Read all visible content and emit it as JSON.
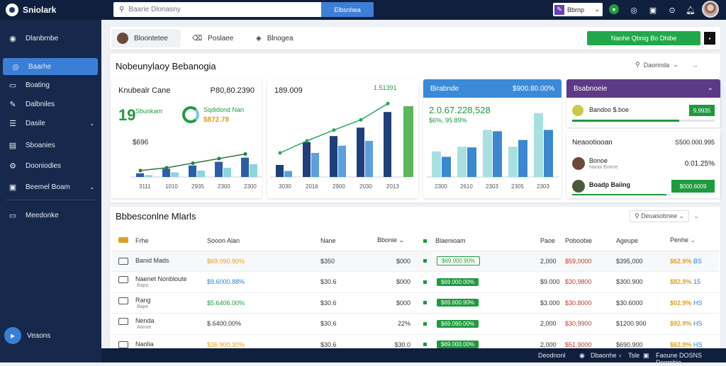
{
  "topbar": {
    "brand": "Sniolark",
    "search_placeholder": "Baarie Dlonasny",
    "search_button": "Elbsnhea",
    "selector_label": "Bbrnp"
  },
  "sidebar": {
    "items": [
      {
        "label": "Dlanbrnbe",
        "icon": "globe-icon"
      },
      {
        "label": "Baarhe",
        "icon": "chat-icon",
        "active": true
      },
      {
        "label": "Boating",
        "icon": "inbox-icon"
      },
      {
        "label": "Dalbniles",
        "icon": "edit-icon"
      },
      {
        "label": "Dasile",
        "icon": "list-icon",
        "has_chevron": true
      },
      {
        "label": "Sboanies",
        "icon": "briefcase-icon"
      },
      {
        "label": "Dooniodies",
        "icon": "settings-icon"
      },
      {
        "label": "Beemel Boam",
        "icon": "grid-icon",
        "has_chevron": true
      },
      {
        "label": "Meedonke",
        "icon": "monitor-icon"
      }
    ],
    "bottom_label": "Veaons"
  },
  "tabs": [
    {
      "label": "Bloontetee"
    },
    {
      "label": "Poslaee"
    },
    {
      "label": "Blnogea"
    }
  ],
  "action_button": "Nanhe Qbnig Bo Dhibe",
  "panel": {
    "title": "Nobeunylaoy Bebanogia",
    "controls_label": "Daorinda"
  },
  "cards": {
    "c1": {
      "title": "Knubealr Cane",
      "value": "P80,80.2390",
      "big_number": "19",
      "metric_label": "Sbunkam",
      "metric_value": "$696",
      "donut_label": "Sqdidond Nan",
      "donut_value": "$872.78",
      "x_labels": [
        "3111",
        "1010",
        "2935",
        "2300",
        "2300"
      ]
    },
    "c2": {
      "title": "189.009",
      "annotation": "1.51391",
      "x_labels": [
        "3030",
        "2016",
        "2900",
        "2030",
        "2013"
      ]
    },
    "c3": {
      "title": "Birabnde",
      "value": "$900.80.00%",
      "big_value": "2.0.67.228,528",
      "sub_value": "$6%, 95.89%",
      "x_labels": [
        "2300",
        "2610",
        "2303",
        "2305",
        "2303"
      ]
    },
    "c4": {
      "header": "Bsabnoeie",
      "row1_label": "Bandoo $.boe",
      "row1_button": "9,9935",
      "row1_progress": 0.75,
      "section_title": "Neaootiooan",
      "section_value": "S500.000.995",
      "row2_label": "Bonoe",
      "row2_sub": "Nanoi Eonne",
      "row2_value": "0.01.25%",
      "row3_label": "Boadp Baiing",
      "row3_button": "$000.6009",
      "row3_progress": 0.95
    }
  },
  "chart_data": [
    {
      "type": "bar",
      "categories": [
        "3111",
        "1010",
        "2935",
        "2300",
        "2300"
      ],
      "series": [
        {
          "values": [
            8,
            18,
            25,
            33,
            42
          ]
        },
        {
          "values": [
            4,
            10,
            14,
            20,
            28
          ]
        }
      ],
      "line": [
        14,
        20,
        30,
        40,
        50
      ]
    },
    {
      "type": "bar",
      "categories": [
        "3030",
        "2016",
        "2900",
        "2030",
        "2013"
      ],
      "series": [
        {
          "values": [
            20,
            58,
            68,
            82,
            108
          ]
        },
        {
          "values": [
            10,
            40,
            52,
            60,
            0
          ]
        }
      ],
      "line": [
        40,
        60,
        78,
        95,
        122
      ]
    },
    {
      "type": "bar",
      "categories": [
        "2300",
        "2610",
        "2303",
        "2305",
        "2303"
      ],
      "series": [
        {
          "values": [
            38,
            45,
            70,
            45,
            95
          ]
        },
        {
          "values": [
            30,
            44,
            68,
            55,
            70
          ]
        }
      ]
    }
  ],
  "table": {
    "title": "Bbbesconlne Mlarls",
    "control_label": "Deuasobnee",
    "columns": [
      "Frhe",
      "Sooon Alan",
      "Nane",
      "Bbonie",
      "Blaenioam",
      "Paoe",
      "Poboobie",
      "Ageupe",
      "Penhe"
    ],
    "rows": [
      {
        "name": "Banid Mads",
        "sub": "",
        "status": "$69.090.90%",
        "status_color": "orange",
        "nane": "$350",
        "bbonie": "$000",
        "badge": "$69.000.90%",
        "badge_style": "outline",
        "paoe": "2,000",
        "poboobie": "$59,0000",
        "ageupe": "$395,000",
        "penhe": "$62.9%",
        "penhe_tail": "BS"
      },
      {
        "name": "Naenet Nonbloute",
        "sub": "Bapo",
        "status": "$9.6000.88%",
        "status_color": "blue",
        "nane": "$30.6",
        "bbonie": "$000",
        "badge": "$69.000.00%",
        "badge_style": "solid",
        "paoe": "$9.000",
        "poboobie": "$30,9800",
        "ageupe": "$300.900",
        "penhe": "$82.9%",
        "penhe_tail": "15"
      },
      {
        "name": "Rang",
        "sub": "Bape",
        "status": "$5.6406.00%",
        "status_color": "green",
        "nane": "$30.6",
        "bbonie": "$000",
        "badge": "$69.600.90%",
        "badge_style": "solid",
        "paoe": "$3.000",
        "poboobie": "$30.8000",
        "ageupe": "$30.6000",
        "penhe": "$02.9%",
        "penhe_tail": "HS"
      },
      {
        "name": "Nenda",
        "sub": "Aanoe",
        "status": "$.6400.00%",
        "status_color": "plain",
        "nane": "$30.6",
        "bbonie": "22%",
        "badge": "$69.090.00%",
        "badge_style": "solid",
        "paoe": "2,000",
        "poboobie": "$30,9900",
        "ageupe": "$1200.900",
        "penhe": "$92.9%",
        "penhe_tail": "HS"
      },
      {
        "name": "Naolia",
        "sub": "",
        "status": "$36.900.30%",
        "status_color": "orange",
        "nane": "$30.6",
        "bbonie": "$30.0",
        "badge": "$69.000.00%",
        "badge_style": "solid",
        "paoe": "2,000",
        "poboobie": "$51.9000",
        "ageupe": "$690.900",
        "penhe": "$62.9%",
        "penhe_tail": "HS"
      }
    ]
  },
  "footer": {
    "left": "Deodnonl",
    "mid1": "Dbaonhe",
    "mid2": "Tsle",
    "right": "Faoune DOSNS Deemhie"
  },
  "colors": {
    "accent": "#3a7fd5",
    "sidebar": "#16294d",
    "topbar": "#0f1f3d",
    "success": "#22a84a",
    "purple": "#5e3a86"
  }
}
